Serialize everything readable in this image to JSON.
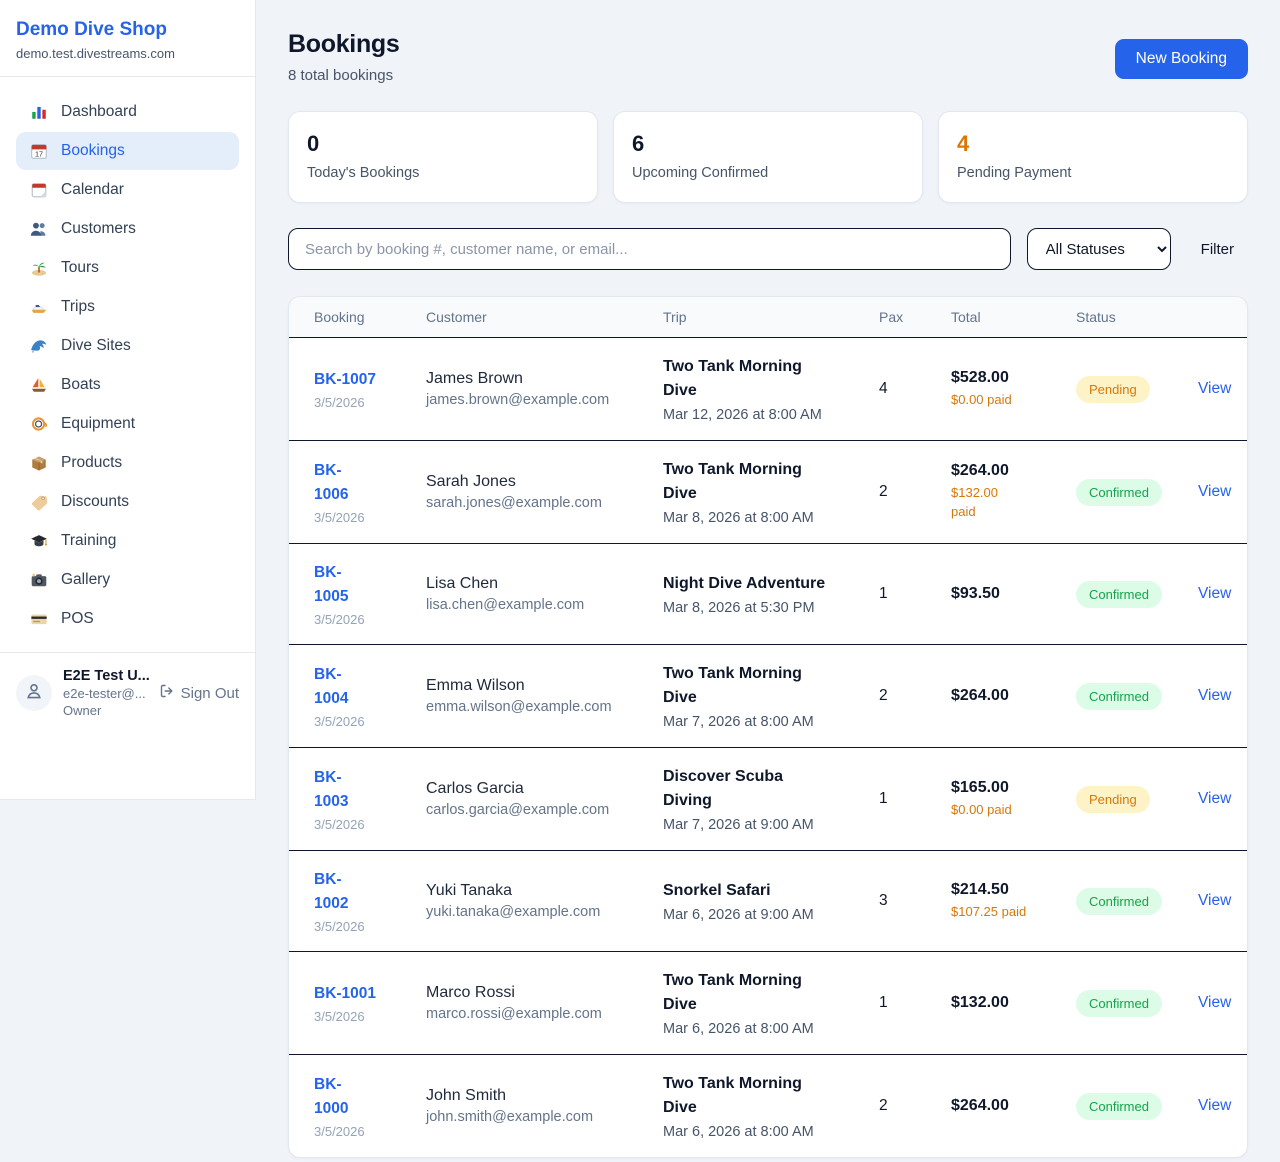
{
  "sidebar": {
    "brand": {
      "name": "Demo Dive Shop",
      "domain": "demo.test.divestreams.com"
    },
    "items": [
      {
        "icon": "bar-chart-icon",
        "label": "Dashboard",
        "active": false
      },
      {
        "icon": "calendar-date-icon",
        "label": "Bookings",
        "active": true
      },
      {
        "icon": "calendar-icon",
        "label": "Calendar",
        "active": false
      },
      {
        "icon": "users-icon",
        "label": "Customers",
        "active": false
      },
      {
        "icon": "island-icon",
        "label": "Tours",
        "active": false
      },
      {
        "icon": "speedboat-icon",
        "label": "Trips",
        "active": false
      },
      {
        "icon": "wave-icon",
        "label": "Dive Sites",
        "active": false
      },
      {
        "icon": "sailboat-icon",
        "label": "Boats",
        "active": false
      },
      {
        "icon": "dive-mask-icon",
        "label": "Equipment",
        "active": false
      },
      {
        "icon": "package-icon",
        "label": "Products",
        "active": false
      },
      {
        "icon": "tag-icon",
        "label": "Discounts",
        "active": false
      },
      {
        "icon": "grad-cap-icon",
        "label": "Training",
        "active": false
      },
      {
        "icon": "camera-icon",
        "label": "Gallery",
        "active": false
      },
      {
        "icon": "credit-card-icon",
        "label": "POS",
        "active": false
      }
    ],
    "user": {
      "name": "E2E Test U...",
      "email": "e2e-tester@...",
      "role": "Owner",
      "sign_out_label": "Sign Out"
    }
  },
  "header": {
    "title": "Bookings",
    "subtitle": "8 total bookings",
    "new_booking_label": "New Booking"
  },
  "stats": [
    {
      "value": "0",
      "label": "Today's Bookings",
      "color": "#0f172a"
    },
    {
      "value": "6",
      "label": "Upcoming Confirmed",
      "color": "#0f172a"
    },
    {
      "value": "4",
      "label": "Pending Payment",
      "color": "#d97706"
    }
  ],
  "filters": {
    "search_placeholder": "Search by booking #, customer name, or email...",
    "status_selected": "All Statuses",
    "filter_label": "Filter"
  },
  "table": {
    "columns": [
      "Booking",
      "Customer",
      "Trip",
      "Pax",
      "Total",
      "Status"
    ],
    "view_label": "View",
    "status_styles": {
      "Pending": {
        "bg": "#fef3c7",
        "fg": "#d97706"
      },
      "Confirmed": {
        "bg": "#dcfce7",
        "fg": "#16a34a"
      }
    },
    "rows": [
      {
        "id": "BK-1007",
        "id_lines": [
          "BK-1007"
        ],
        "date": "3/5/2026",
        "customer": "James Brown",
        "email": "james.brown@example.com",
        "trip": "Two Tank Morning Dive",
        "trip_lines": [
          "Two Tank Morning",
          "Dive"
        ],
        "trip_when": "Mar 12, 2026 at 8:00 AM",
        "pax": "4",
        "total": "$528.00",
        "paid_lines": [
          "$0.00 paid"
        ],
        "status": "Pending"
      },
      {
        "id": "BK-1006",
        "id_lines": [
          "BK-",
          "1006"
        ],
        "date": "3/5/2026",
        "customer": "Sarah Jones",
        "email": "sarah.jones@example.com",
        "trip": "Two Tank Morning Dive",
        "trip_lines": [
          "Two Tank Morning",
          "Dive"
        ],
        "trip_when": "Mar 8, 2026 at 8:00 AM",
        "pax": "2",
        "total": "$264.00",
        "paid_lines": [
          "$132.00",
          "paid"
        ],
        "status": "Confirmed"
      },
      {
        "id": "BK-1005",
        "id_lines": [
          "BK-",
          "1005"
        ],
        "date": "3/5/2026",
        "customer": "Lisa Chen",
        "email": "lisa.chen@example.com",
        "trip": "Night Dive Adventure",
        "trip_lines": [
          "Night Dive Adventure"
        ],
        "trip_when": "Mar 8, 2026 at 5:30 PM",
        "pax": "1",
        "total": "$93.50",
        "paid_lines": [],
        "status": "Confirmed"
      },
      {
        "id": "BK-1004",
        "id_lines": [
          "BK-",
          "1004"
        ],
        "date": "3/5/2026",
        "customer": "Emma Wilson",
        "email": "emma.wilson@example.com",
        "trip": "Two Tank Morning Dive",
        "trip_lines": [
          "Two Tank Morning",
          "Dive"
        ],
        "trip_when": "Mar 7, 2026 at 8:00 AM",
        "pax": "2",
        "total": "$264.00",
        "paid_lines": [],
        "status": "Confirmed"
      },
      {
        "id": "BK-1003",
        "id_lines": [
          "BK-",
          "1003"
        ],
        "date": "3/5/2026",
        "customer": "Carlos Garcia",
        "email": "carlos.garcia@example.com",
        "trip": "Discover Scuba Diving",
        "trip_lines": [
          "Discover Scuba",
          "Diving"
        ],
        "trip_when": "Mar 7, 2026 at 9:00 AM",
        "pax": "1",
        "total": "$165.00",
        "paid_lines": [
          "$0.00 paid"
        ],
        "status": "Pending"
      },
      {
        "id": "BK-1002",
        "id_lines": [
          "BK-",
          "1002"
        ],
        "date": "3/5/2026",
        "customer": "Yuki Tanaka",
        "email": "yuki.tanaka@example.com",
        "trip": "Snorkel Safari",
        "trip_lines": [
          "Snorkel Safari"
        ],
        "trip_when": "Mar 6, 2026 at 9:00 AM",
        "pax": "3",
        "total": "$214.50",
        "paid_lines": [
          "$107.25 paid"
        ],
        "status": "Confirmed"
      },
      {
        "id": "BK-1001",
        "id_lines": [
          "BK-1001"
        ],
        "date": "3/5/2026",
        "customer": "Marco Rossi",
        "email": "marco.rossi@example.com",
        "trip": "Two Tank Morning Dive",
        "trip_lines": [
          "Two Tank Morning",
          "Dive"
        ],
        "trip_when": "Mar 6, 2026 at 8:00 AM",
        "pax": "1",
        "total": "$132.00",
        "paid_lines": [],
        "status": "Confirmed"
      },
      {
        "id": "BK-1000",
        "id_lines": [
          "BK-",
          "1000"
        ],
        "date": "3/5/2026",
        "customer": "John Smith",
        "email": "john.smith@example.com",
        "trip": "Two Tank Morning Dive",
        "trip_lines": [
          "Two Tank Morning",
          "Dive"
        ],
        "trip_when": "Mar 6, 2026 at 8:00 AM",
        "pax": "2",
        "total": "$264.00",
        "paid_lines": [],
        "status": "Confirmed"
      }
    ]
  },
  "colors": {
    "accent_blue": "#2563eb",
    "pending_orange": "#d97706",
    "confirmed_green": "#16a34a",
    "page_background": "#f0f3f8"
  }
}
